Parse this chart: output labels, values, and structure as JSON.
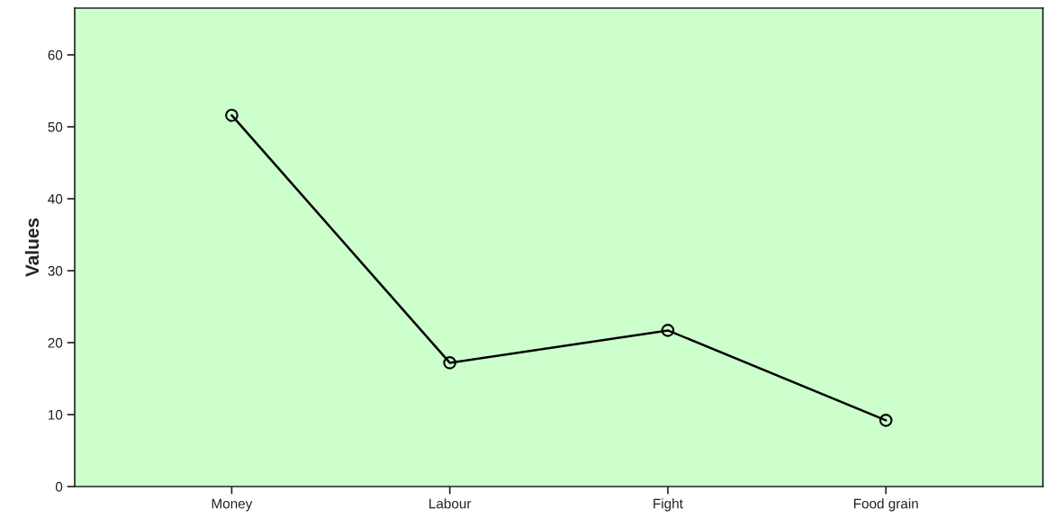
{
  "chart_data": {
    "type": "line",
    "ylabel": "Values",
    "categories": [
      "Money",
      "Labour",
      "Fight",
      "Food grain"
    ],
    "series": [
      {
        "color": "#000000",
        "values": [
          51.6,
          17.2,
          21.7,
          9.2
        ]
      }
    ],
    "ylim": [
      0,
      66.5
    ],
    "yticks": [
      0,
      10,
      20,
      30,
      40,
      50,
      60
    ],
    "marker": "circle",
    "line_style": "solid",
    "grid": false,
    "legend": false
  }
}
